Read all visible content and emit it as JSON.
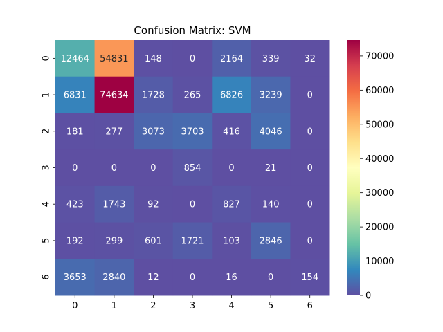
{
  "chart_data": {
    "type": "heatmap",
    "title": "Confusion Matrix: SVM",
    "xlabel": "",
    "ylabel": "",
    "x_categories": [
      "0",
      "1",
      "2",
      "3",
      "4",
      "5",
      "6"
    ],
    "y_categories": [
      "0",
      "1",
      "2",
      "3",
      "4",
      "5",
      "6"
    ],
    "values": [
      [
        12464,
        54831,
        148,
        0,
        2164,
        339,
        32
      ],
      [
        6831,
        74634,
        1728,
        265,
        6826,
        3239,
        0
      ],
      [
        181,
        277,
        3073,
        3703,
        416,
        4046,
        0
      ],
      [
        0,
        0,
        0,
        854,
        0,
        21,
        0
      ],
      [
        423,
        1743,
        92,
        0,
        827,
        140,
        0
      ],
      [
        192,
        299,
        601,
        1721,
        103,
        2846,
        0
      ],
      [
        3653,
        2840,
        12,
        0,
        16,
        0,
        154
      ]
    ],
    "colormap": "Spectral_r",
    "vmin": 0,
    "vmax": 74634,
    "colorbar_ticks": [
      0,
      10000,
      20000,
      30000,
      40000,
      50000,
      60000,
      70000
    ],
    "colorbar_tick_labels": [
      "0",
      "10000",
      "20000",
      "30000",
      "40000",
      "50000",
      "60000",
      "70000"
    ],
    "annotations": true
  }
}
